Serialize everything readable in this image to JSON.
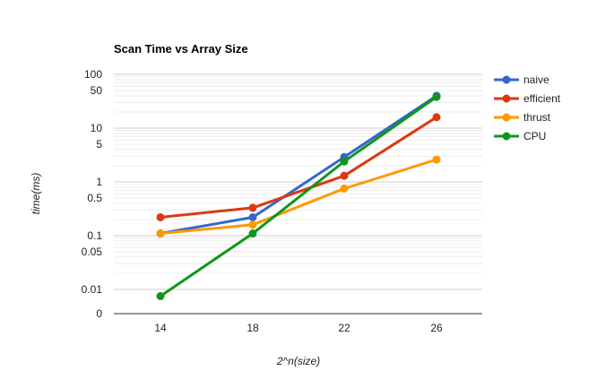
{
  "chart_data": {
    "type": "line",
    "title": "Scan Time vs Array Size",
    "xlabel": "2^n(size)",
    "ylabel": "time(ms)",
    "y_scale": "log",
    "categories": [
      "14",
      "18",
      "22",
      "26"
    ],
    "y_ticks": [
      "100",
      "50",
      "10",
      "5",
      "1",
      "0.5",
      "0.1",
      "0.05",
      "0.01",
      "0"
    ],
    "legend_position": "right",
    "grid": true,
    "series": [
      {
        "name": "naive",
        "color": "#3366cc",
        "values": [
          0.11,
          0.22,
          2.9,
          40
        ]
      },
      {
        "name": "efficient",
        "color": "#dc3912",
        "values": [
          0.22,
          0.33,
          1.3,
          16
        ]
      },
      {
        "name": "thrust",
        "color": "#ff9900",
        "values": [
          0.11,
          0.16,
          0.75,
          2.6
        ]
      },
      {
        "name": "CPU",
        "color": "#109618",
        "values": [
          0.0075,
          0.11,
          2.4,
          38
        ]
      }
    ]
  }
}
